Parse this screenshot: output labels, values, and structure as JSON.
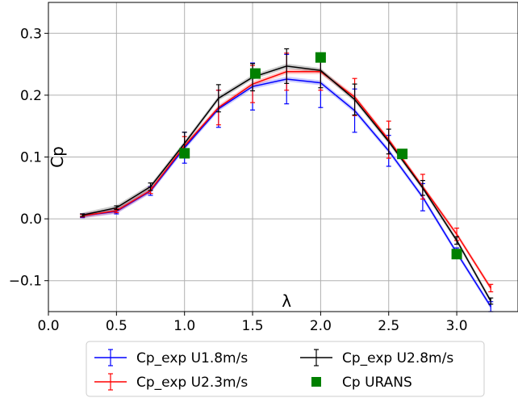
{
  "chart_data": {
    "type": "line",
    "xlabel": "λ",
    "ylabel": "Cp",
    "xlim": [
      0.0,
      3.45
    ],
    "ylim": [
      -0.15,
      0.35
    ],
    "xticks": [
      0.0,
      0.5,
      1.0,
      1.5,
      2.0,
      2.5,
      3.0
    ],
    "xtick_labels": [
      "0.0",
      "0.5",
      "1.0",
      "1.5",
      "2.0",
      "2.5",
      "3.0"
    ],
    "yticks": [
      -0.1,
      0.0,
      0.1,
      0.2,
      0.3
    ],
    "ytick_labels": [
      "−0.1",
      "0.0",
      "0.1",
      "0.2",
      "0.3"
    ],
    "grid": true,
    "legend_position": "bottom-center",
    "series": [
      {
        "name": "Cp_exp U1.8m/s",
        "color": "#0000ff",
        "marker": "errorbar",
        "x": [
          0.25,
          0.5,
          0.75,
          1.0,
          1.25,
          1.5,
          1.75,
          2.0,
          2.25,
          2.5,
          2.75,
          3.0,
          3.25
        ],
        "y": [
          0.005,
          0.012,
          0.045,
          0.115,
          0.178,
          0.214,
          0.226,
          0.22,
          0.175,
          0.11,
          0.035,
          -0.055,
          -0.142
        ],
        "yerr": [
          0.003,
          0.004,
          0.007,
          0.025,
          0.03,
          0.038,
          0.04,
          0.04,
          0.035,
          0.025,
          0.022,
          0.008,
          0.008
        ]
      },
      {
        "name": "Cp_exp U2.3m/s",
        "color": "#ff0000",
        "marker": "errorbar",
        "x": [
          0.25,
          0.5,
          0.75,
          1.0,
          1.25,
          1.5,
          1.75,
          2.0,
          2.25,
          2.5,
          2.75,
          3.0,
          3.25
        ],
        "y": [
          0.005,
          0.013,
          0.046,
          0.118,
          0.18,
          0.218,
          0.238,
          0.238,
          0.197,
          0.128,
          0.052,
          -0.025,
          -0.112
        ],
        "yerr": [
          0.002,
          0.003,
          0.005,
          0.015,
          0.028,
          0.03,
          0.03,
          0.03,
          0.03,
          0.03,
          0.02,
          0.01,
          0.006
        ]
      },
      {
        "name": "Cp_exp U2.8m/s",
        "color": "#000000",
        "marker": "errorbar",
        "x": [
          0.25,
          0.5,
          0.75,
          1.0,
          1.25,
          1.5,
          1.75,
          2.0,
          2.25,
          2.5,
          2.75,
          3.0,
          3.25
        ],
        "y": [
          0.006,
          0.018,
          0.052,
          0.122,
          0.195,
          0.229,
          0.247,
          0.24,
          0.193,
          0.125,
          0.05,
          -0.035,
          -0.133
        ],
        "yerr": [
          0.002,
          0.003,
          0.006,
          0.018,
          0.022,
          0.022,
          0.028,
          0.028,
          0.025,
          0.02,
          0.012,
          0.006,
          0.005
        ]
      },
      {
        "name": "Cp URANS",
        "color": "#008000",
        "marker": "square",
        "x": [
          1.0,
          1.52,
          2.0,
          2.6,
          3.0
        ],
        "y": [
          0.106,
          0.235,
          0.261,
          0.105,
          -0.057
        ]
      }
    ]
  }
}
